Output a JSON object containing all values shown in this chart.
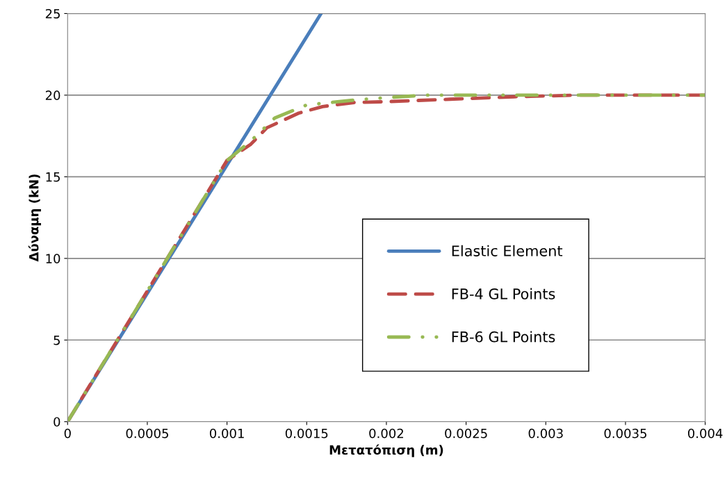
{
  "chart_data": {
    "type": "line",
    "xlabel": "Μετατόπιση (m)",
    "ylabel": "Δύναμη (kN)",
    "xlim": [
      0,
      0.004
    ],
    "ylim": [
      0,
      25
    ],
    "xticks": [
      0,
      0.0005,
      0.001,
      0.0015,
      0.002,
      0.0025,
      0.003,
      0.0035,
      0.004
    ],
    "yticks": [
      0,
      5,
      10,
      15,
      20,
      25
    ],
    "grid": "y",
    "legend": "bottom right",
    "marker": "none",
    "series": [
      {
        "name": "Elastic Element",
        "color": "#4a7ebb",
        "line_style": "solid",
        "x": [
          0,
          0.00159
        ],
        "values": [
          0,
          25
        ]
      },
      {
        "name": "FB-4 GL Points",
        "color": "#be4b48",
        "line_style": "dashed",
        "x": [
          0,
          0.0005,
          0.001,
          0.00115,
          0.00125,
          0.00145,
          0.0016,
          0.0018,
          0.002,
          0.0024,
          0.0028,
          0.0032,
          0.0036,
          0.004
        ],
        "values": [
          0,
          8,
          16,
          17.0,
          18.0,
          18.9,
          19.3,
          19.55,
          19.6,
          19.75,
          19.9,
          20,
          20,
          20
        ]
      },
      {
        "name": "FB-6 GL Points",
        "color": "#98b954",
        "line_style": "dashdotdot",
        "x": [
          0,
          0.0005,
          0.001,
          0.00115,
          0.0013,
          0.0015,
          0.0018,
          0.002,
          0.00225,
          0.0028,
          0.0032,
          0.0036,
          0.004
        ],
        "values": [
          0,
          8,
          16,
          17.2,
          18.6,
          19.4,
          19.7,
          19.85,
          20,
          20,
          20,
          20,
          20
        ]
      }
    ]
  }
}
